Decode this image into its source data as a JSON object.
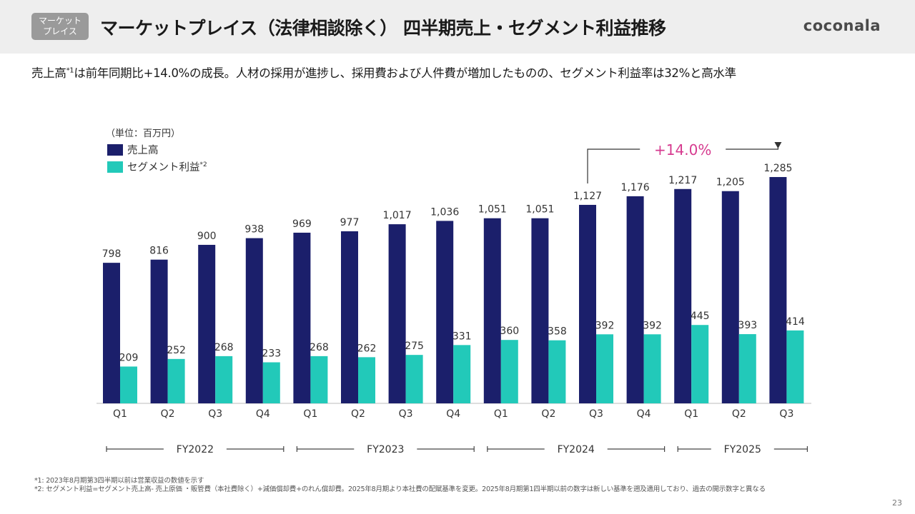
{
  "header": {
    "badge_line1": "マーケット",
    "badge_line2": "プレイス",
    "title": "マーケットプレイス（法律相談除く） 四半期売上・セグメント利益推移",
    "logo": "coconala"
  },
  "subtitle": {
    "part1": "売上高",
    "sup": "*1",
    "part2": "は前年同期比+14.0%の成長。人材の採用が進捗し、採用費および人件費が増加したものの、セグメント利益率は32%と高水準"
  },
  "colors": {
    "revenue": "#1b1f6b",
    "profit": "#22c9b9",
    "growth": "#d63b8f"
  },
  "chart_data": {
    "type": "bar",
    "unit": "（単位：百万円）",
    "categories": [
      "Q1",
      "Q2",
      "Q3",
      "Q4",
      "Q1",
      "Q2",
      "Q3",
      "Q4",
      "Q1",
      "Q2",
      "Q3",
      "Q4",
      "Q1",
      "Q2",
      "Q3"
    ],
    "fiscal_years": [
      {
        "label": "FY2022",
        "start": 0,
        "end": 3
      },
      {
        "label": "FY2023",
        "start": 4,
        "end": 7
      },
      {
        "label": "FY2024",
        "start": 8,
        "end": 11
      },
      {
        "label": "FY2025",
        "start": 12,
        "end": 14
      }
    ],
    "series": [
      {
        "name": "売上高",
        "values": [
          798,
          816,
          900,
          938,
          969,
          977,
          1017,
          1036,
          1051,
          1051,
          1127,
          1176,
          1217,
          1205,
          1285
        ]
      },
      {
        "name": "セグメント利益",
        "name_sup": "*2",
        "values": [
          209,
          252,
          268,
          233,
          268,
          262,
          275,
          331,
          360,
          358,
          392,
          392,
          445,
          393,
          414
        ]
      }
    ],
    "annotation": {
      "text": "+14.0%",
      "from_index": 10,
      "to_index": 14
    },
    "legend_position": "top-left",
    "grid": false
  },
  "footnotes": {
    "note1": "*1: 2023年8月期第3四半期以前は営業収益の数値を示す",
    "note2": "*2: セグメント利益=セグメント売上高- 売上原価 ・販管費（本社費除く）+減価償却費+のれん償却費。2025年8月期より本社費の配賦基準を変更。2025年8月期第1四半期以前の数字は新しい基準を遡及適用しており、過去の開示数字と異なる"
  },
  "page_number": "23"
}
